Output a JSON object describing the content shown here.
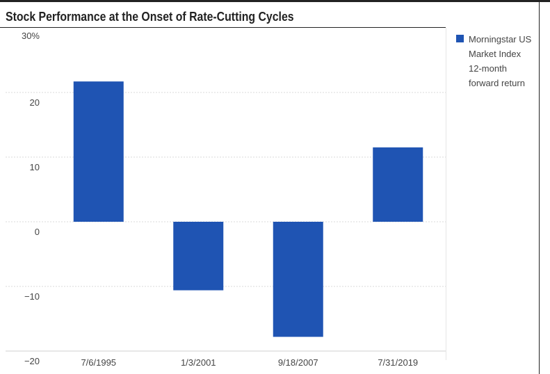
{
  "chart_data": {
    "type": "bar",
    "title": "Stock Performance at the Onset of Rate-Cutting Cycles",
    "categories": [
      "7/6/1995",
      "1/3/2001",
      "9/18/2007",
      "7/31/2019"
    ],
    "series": [
      {
        "name": "Morningstar US Market Index 12-month forward return",
        "values": [
          21.7,
          -10.6,
          -17.8,
          11.5
        ]
      }
    ],
    "ylim": [
      -20,
      30
    ],
    "yticks": [
      30,
      20,
      10,
      0,
      -10,
      -20
    ],
    "ytick_labels": [
      "30%",
      "20",
      "10",
      "0",
      "−10",
      "−20"
    ],
    "xlabel": "",
    "ylabel": "",
    "grid": true,
    "legend_position": "right",
    "bar_color": "#1f54b3"
  }
}
